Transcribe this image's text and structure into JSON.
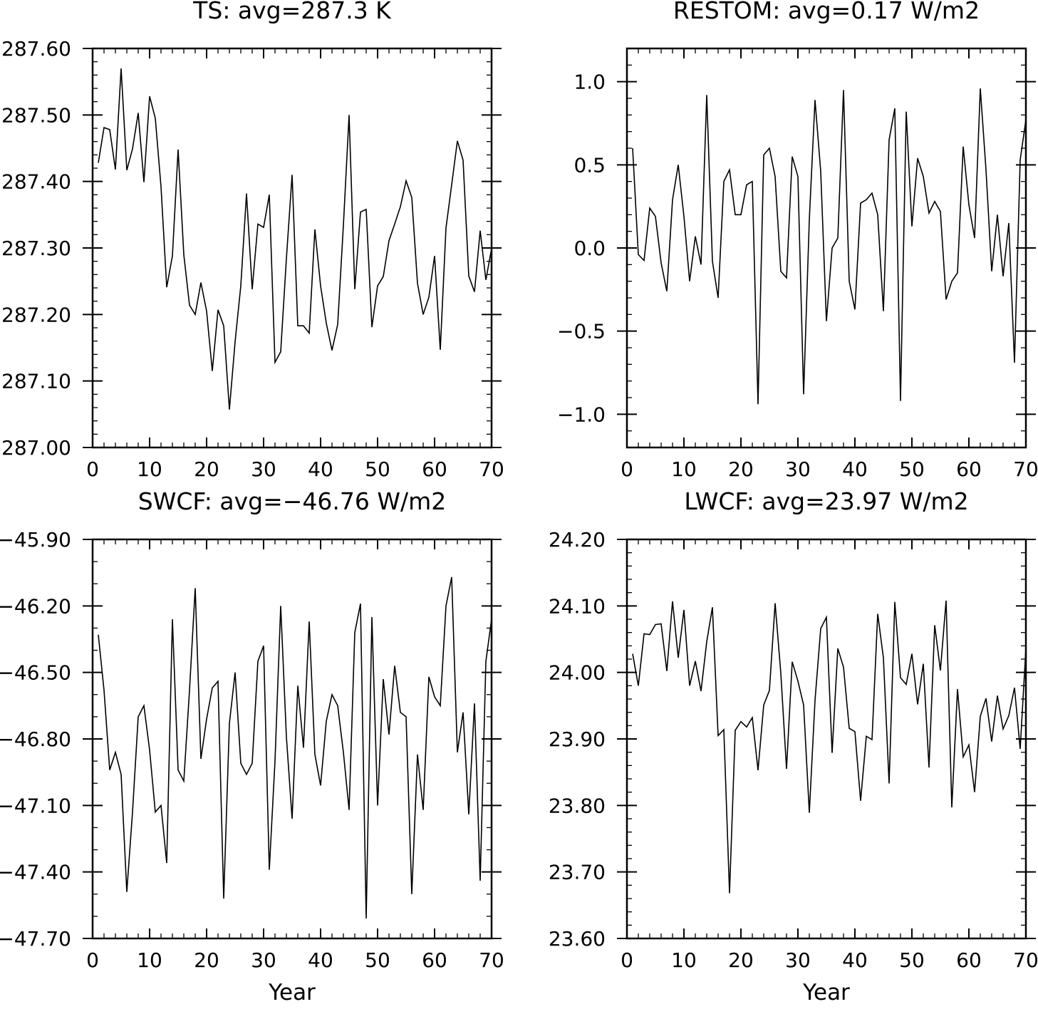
{
  "chart_data": [
    {
      "type": "line",
      "title": "TS: avg=287.3 K",
      "xlabel": "",
      "xlim": [
        0,
        70
      ],
      "xticks": [
        0,
        10,
        20,
        30,
        40,
        50,
        60,
        70
      ],
      "xtick_labels": [
        "0",
        "10",
        "20",
        "30",
        "40",
        "50",
        "60",
        "70"
      ],
      "ylim": [
        287.0,
        287.6
      ],
      "yticks": [
        287.0,
        287.1,
        287.2,
        287.3,
        287.4,
        287.5,
        287.6
      ],
      "ytick_labels": [
        "287.00",
        "287.10",
        "287.20",
        "287.30",
        "287.40",
        "287.50",
        "287.60"
      ],
      "y_minor_step": 0.02,
      "series": [
        {
          "x_start": 1,
          "x_step": 1,
          "values": [
            287.428,
            287.481,
            287.478,
            287.418,
            287.57,
            287.417,
            287.449,
            287.503,
            287.399,
            287.528,
            287.495,
            287.392,
            287.241,
            287.288,
            287.448,
            287.29,
            287.214,
            287.2,
            287.248,
            287.205,
            287.115,
            287.207,
            287.183,
            287.057,
            287.159,
            287.243,
            287.382,
            287.238,
            287.336,
            287.331,
            287.38,
            287.128,
            287.144,
            287.284,
            287.41,
            287.183,
            287.183,
            287.172,
            287.328,
            287.243,
            287.187,
            287.146,
            287.185,
            287.334,
            287.5,
            287.238,
            287.354,
            287.358,
            287.181,
            287.243,
            287.257,
            287.311,
            287.336,
            287.362,
            287.401,
            287.376,
            287.247,
            287.2,
            287.226,
            287.288,
            287.147,
            287.33,
            287.395,
            287.461,
            287.432,
            287.258,
            287.234,
            287.326,
            287.252,
            287.299
          ]
        }
      ]
    },
    {
      "type": "line",
      "title": "RESTOM: avg=0.17 W/m2",
      "xlabel": "",
      "xlim": [
        0,
        70
      ],
      "xticks": [
        0,
        10,
        20,
        30,
        40,
        50,
        60,
        70
      ],
      "xtick_labels": [
        "0",
        "10",
        "20",
        "30",
        "40",
        "50",
        "60",
        "70"
      ],
      "ylim": [
        -1.2,
        1.2
      ],
      "yticks": [
        -1.0,
        -0.5,
        0.0,
        0.5,
        1.0
      ],
      "ytick_labels": [
        "−1.0",
        "−0.5",
        "0.0",
        "0.5",
        "1.0"
      ],
      "y_minor_step": 0.1,
      "series": [
        {
          "x_start": 1,
          "x_step": 1,
          "values": [
            0.6,
            -0.04,
            -0.075,
            0.24,
            0.19,
            -0.09,
            -0.26,
            0.29,
            0.5,
            0.19,
            -0.2,
            0.07,
            -0.1,
            0.92,
            -0.08,
            -0.3,
            0.4,
            0.47,
            0.2,
            0.2,
            0.38,
            0.4,
            -0.94,
            0.56,
            0.6,
            0.43,
            -0.14,
            -0.18,
            0.55,
            0.43,
            -0.88,
            0.17,
            0.89,
            0.46,
            -0.44,
            0.0,
            0.06,
            0.95,
            -0.2,
            -0.37,
            0.27,
            0.29,
            0.33,
            0.2,
            -0.38,
            0.65,
            0.84,
            -0.92,
            0.82,
            0.13,
            0.54,
            0.43,
            0.21,
            0.28,
            0.22,
            -0.31,
            -0.2,
            -0.15,
            0.61,
            0.26,
            0.06,
            0.96,
            0.47,
            -0.14,
            0.2,
            -0.17,
            0.15,
            -0.69,
            0.53,
            0.77
          ]
        }
      ]
    },
    {
      "type": "line",
      "title": "SWCF: avg=−46.76 W/m2",
      "xlabel": "Year",
      "xlim": [
        0,
        70
      ],
      "xticks": [
        0,
        10,
        20,
        30,
        40,
        50,
        60,
        70
      ],
      "xtick_labels": [
        "0",
        "10",
        "20",
        "30",
        "40",
        "50",
        "60",
        "70"
      ],
      "ylim": [
        -47.7,
        -45.9
      ],
      "yticks": [
        -47.7,
        -47.4,
        -47.1,
        -46.8,
        -46.5,
        -46.2,
        -45.9
      ],
      "ytick_labels": [
        "−47.70",
        "−47.40",
        "−47.10",
        "−46.80",
        "−46.50",
        "−46.20",
        "−45.90"
      ],
      "y_minor_step": 0.1,
      "series": [
        {
          "x_start": 1,
          "x_step": 1,
          "values": [
            -46.33,
            -46.58,
            -46.94,
            -46.86,
            -46.96,
            -47.49,
            -47.13,
            -46.7,
            -46.65,
            -46.85,
            -47.13,
            -47.1,
            -47.36,
            -46.26,
            -46.94,
            -46.99,
            -46.58,
            -46.12,
            -46.89,
            -46.71,
            -46.57,
            -46.54,
            -47.52,
            -46.73,
            -46.5,
            -46.91,
            -46.96,
            -46.91,
            -46.45,
            -46.38,
            -47.39,
            -46.9,
            -46.2,
            -46.79,
            -47.16,
            -46.56,
            -46.84,
            -46.27,
            -46.87,
            -47.01,
            -46.72,
            -46.6,
            -46.65,
            -46.86,
            -47.12,
            -46.32,
            -46.19,
            -47.61,
            -46.25,
            -47.1,
            -46.53,
            -46.78,
            -46.47,
            -46.68,
            -46.7,
            -47.5,
            -46.87,
            -47.12,
            -46.52,
            -46.61,
            -46.65,
            -46.2,
            -46.07,
            -46.86,
            -46.68,
            -47.14,
            -46.64,
            -47.44,
            -46.45,
            -46.26
          ]
        }
      ]
    },
    {
      "type": "line",
      "title": "LWCF: avg=23.97 W/m2",
      "xlabel": "Year",
      "xlim": [
        0,
        70
      ],
      "xticks": [
        0,
        10,
        20,
        30,
        40,
        50,
        60,
        70
      ],
      "xtick_labels": [
        "0",
        "10",
        "20",
        "30",
        "40",
        "50",
        "60",
        "70"
      ],
      "ylim": [
        23.6,
        24.2
      ],
      "yticks": [
        23.6,
        23.7,
        23.8,
        23.9,
        24.0,
        24.1,
        24.2
      ],
      "ytick_labels": [
        "23.60",
        "23.70",
        "23.80",
        "23.90",
        "24.00",
        "24.10",
        "24.20"
      ],
      "y_minor_step": 0.02,
      "series": [
        {
          "x_start": 1,
          "x_step": 1,
          "values": [
            24.028,
            23.98,
            24.058,
            24.057,
            24.072,
            24.073,
            24.002,
            24.107,
            24.022,
            24.094,
            23.98,
            24.017,
            23.972,
            24.046,
            24.098,
            23.905,
            23.914,
            23.668,
            23.913,
            23.926,
            23.918,
            23.932,
            23.853,
            23.951,
            23.973,
            24.104,
            23.999,
            23.855,
            24.016,
            23.987,
            23.951,
            23.789,
            23.958,
            24.066,
            24.083,
            23.879,
            24.036,
            24.008,
            23.916,
            23.911,
            23.807,
            23.904,
            23.899,
            24.088,
            24.022,
            23.833,
            24.106,
            23.992,
            23.982,
            24.028,
            23.952,
            24.013,
            23.857,
            24.071,
            24.003,
            24.108,
            23.797,
            23.975,
            23.873,
            23.891,
            23.82,
            23.934,
            23.961,
            23.896,
            23.965,
            23.915,
            23.935,
            23.977,
            23.885,
            24.036
          ]
        }
      ]
    }
  ]
}
